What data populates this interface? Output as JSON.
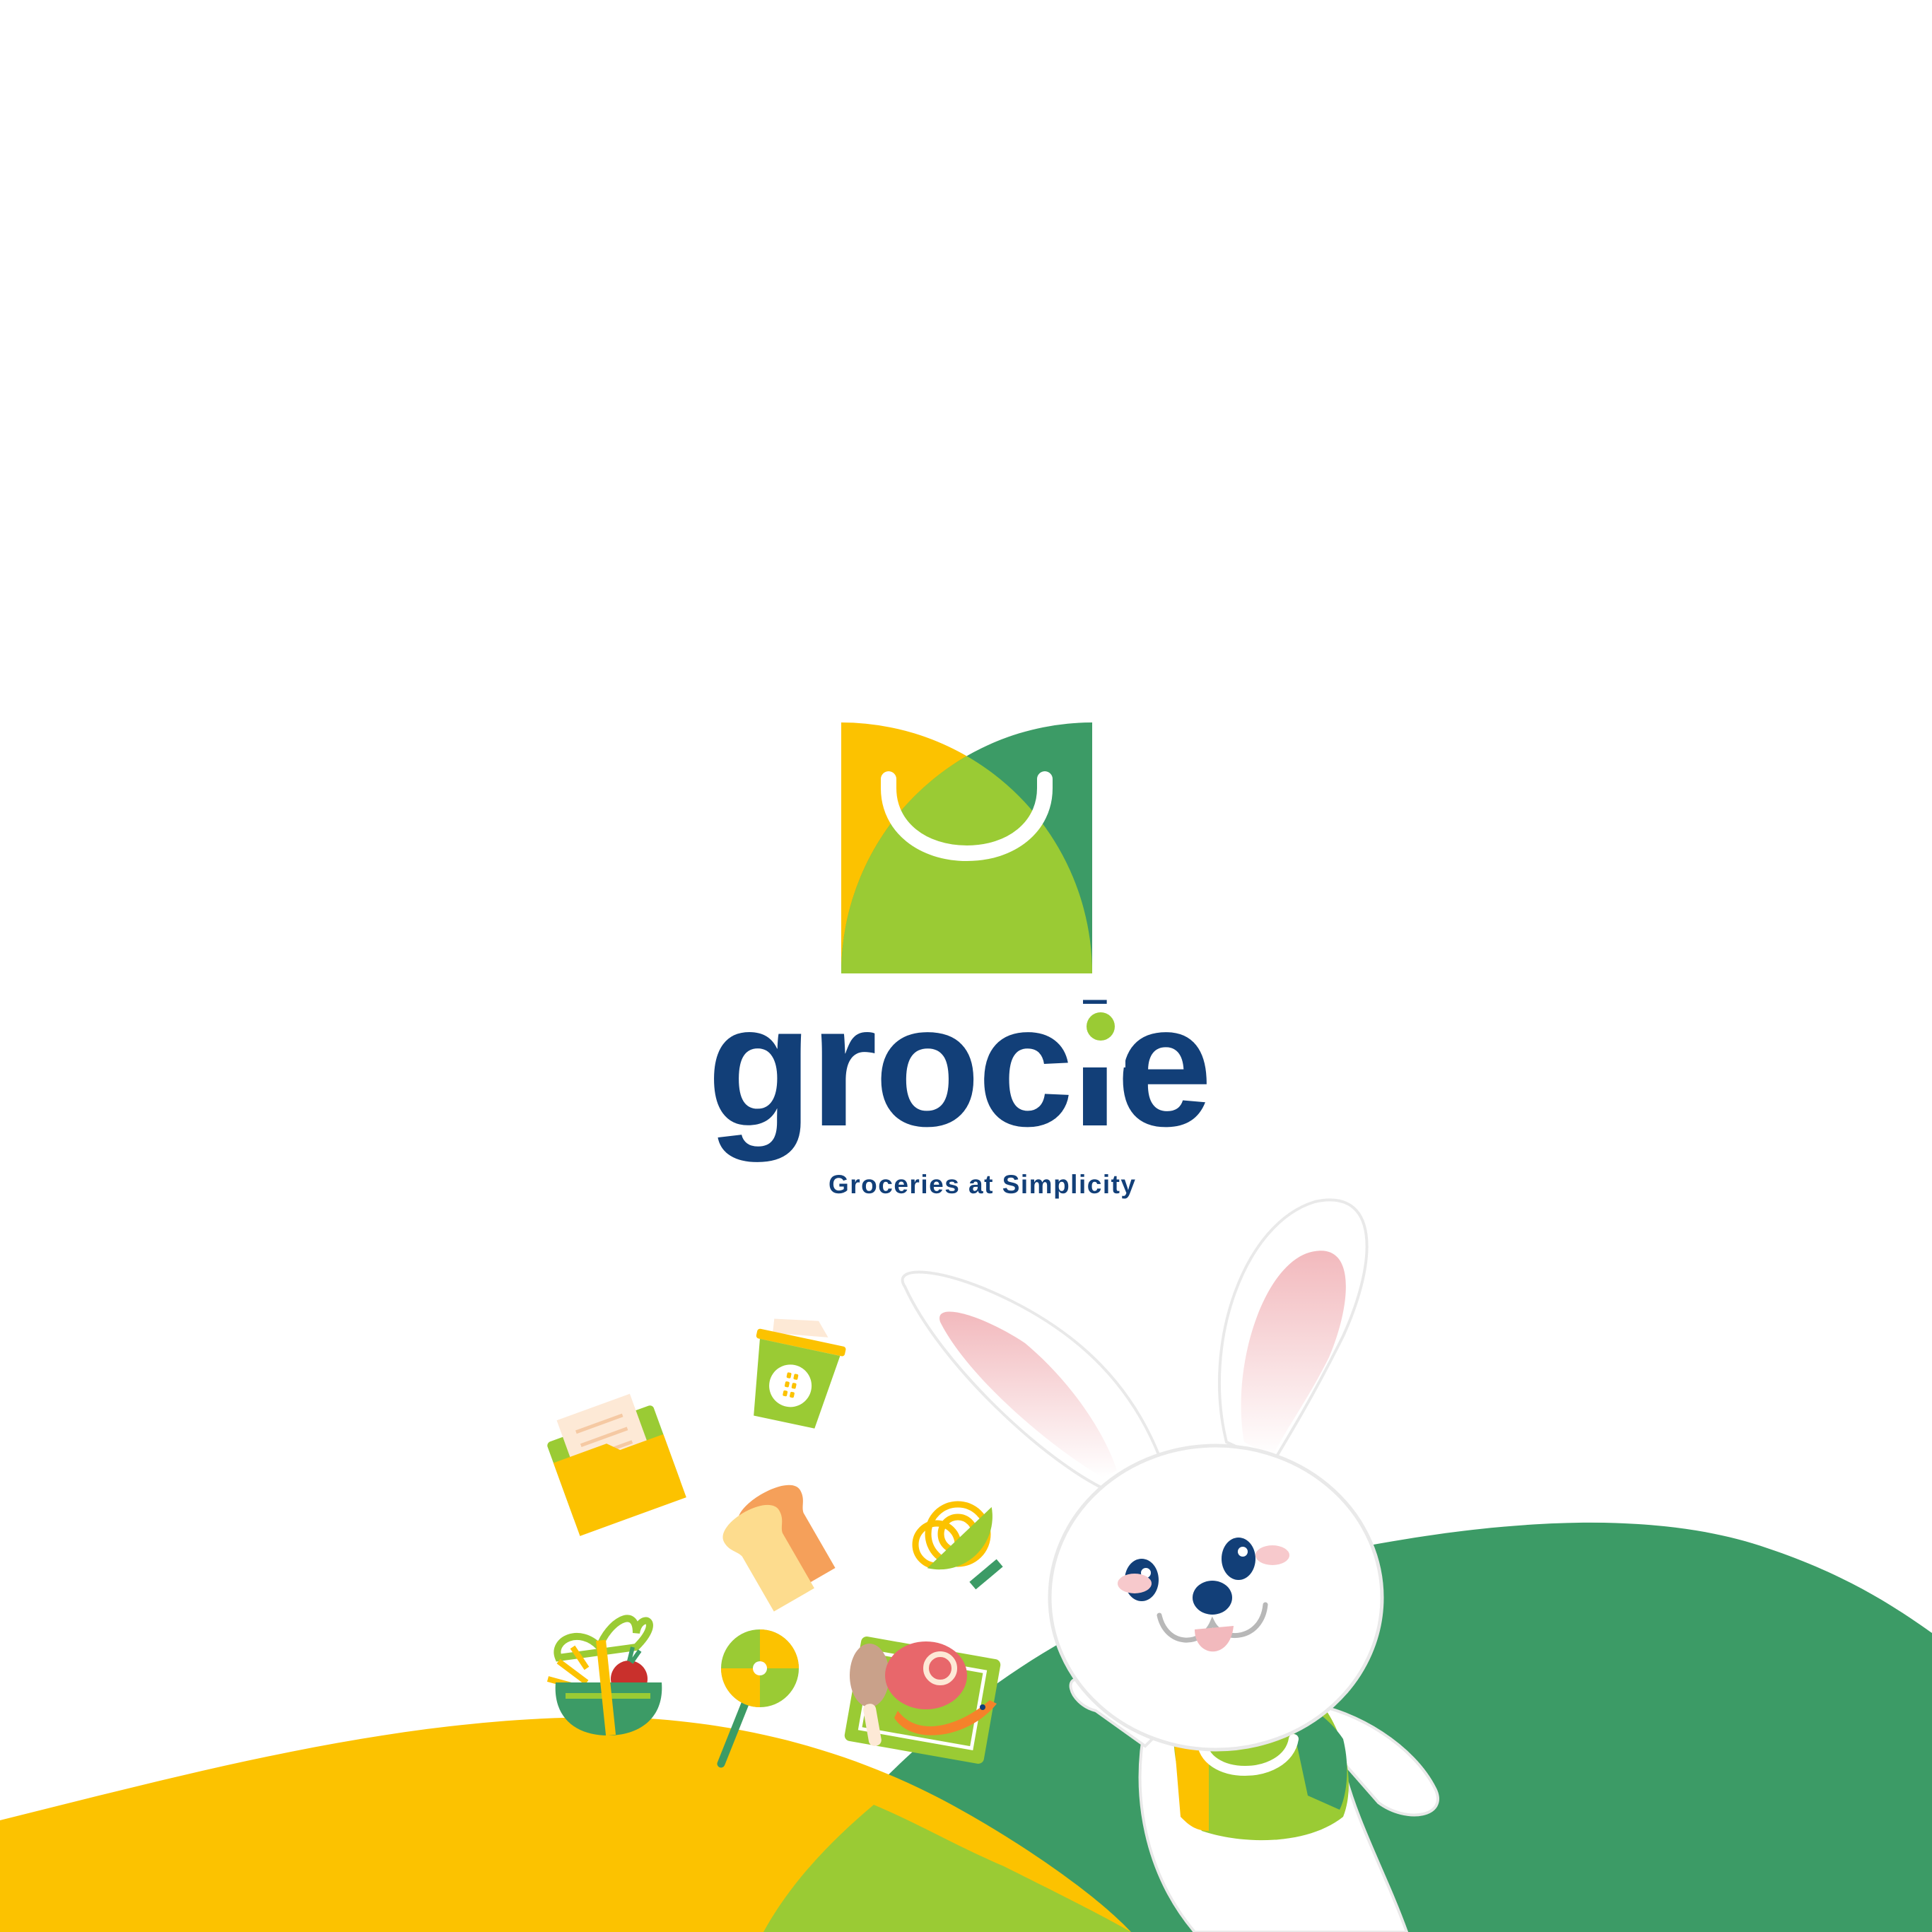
{
  "brand": {
    "name": "grocie",
    "tagline": "Groceries at Simplicity"
  },
  "colors": {
    "navy": "#123f78",
    "yellow": "#fcc200",
    "lime": "#9acb34",
    "green": "#3c9b66",
    "white": "#ffffff"
  },
  "icons": [
    "shopping-bag-logo-icon",
    "yogurt-cup-icon",
    "folder-document-icon",
    "bread-icon",
    "noodle-bowl-icon",
    "gift-basket-icon",
    "lollipop-icon",
    "meat-seafood-icon",
    "bunny-mascot-icon"
  ]
}
